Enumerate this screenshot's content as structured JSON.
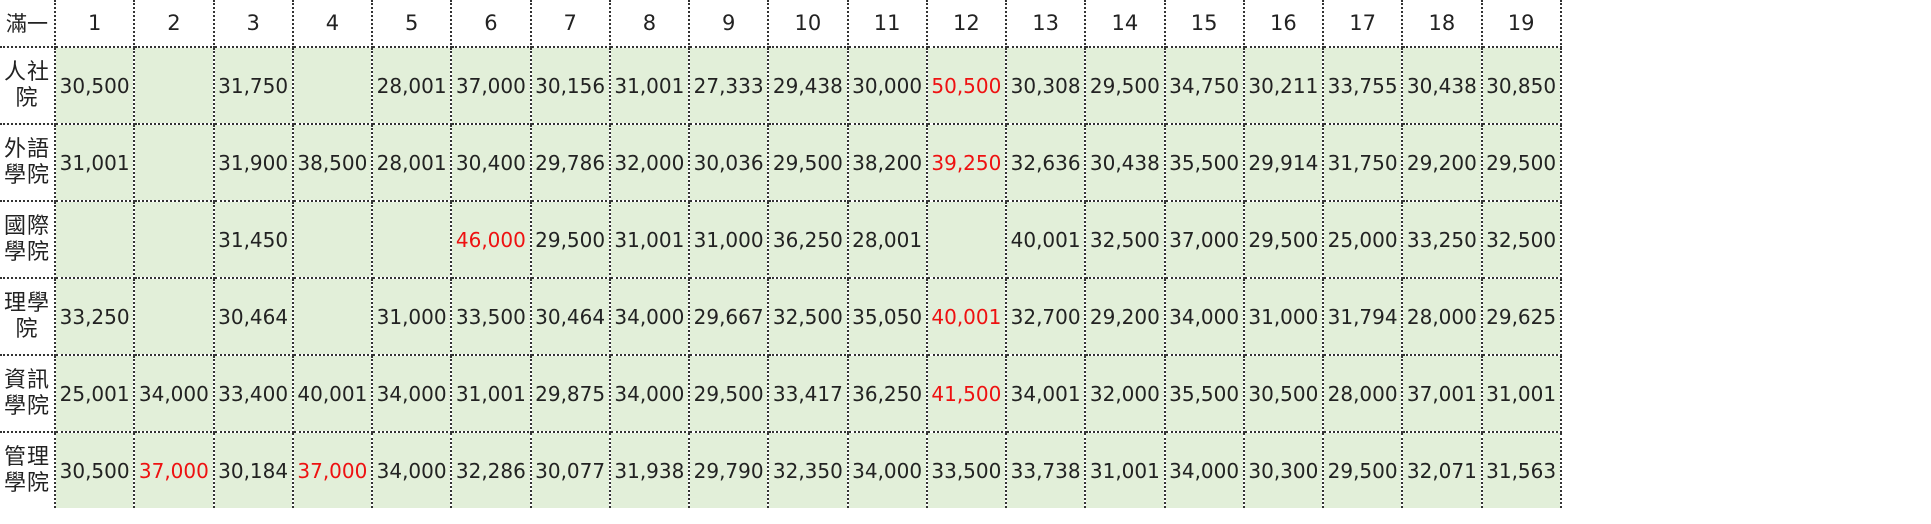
{
  "table": {
    "corner_label": "滿一",
    "columns": [
      "1",
      "2",
      "3",
      "4",
      "5",
      "6",
      "7",
      "8",
      "9",
      "10",
      "11",
      "12",
      "13",
      "14",
      "15",
      "16",
      "17",
      "18",
      "19"
    ],
    "highlight_color": "#ee1111",
    "cell_background": "#e2efd9",
    "rows": [
      {
        "label_lines": [
          "人社",
          "院"
        ],
        "cells": [
          {
            "v": "30,500"
          },
          {
            "v": ""
          },
          {
            "v": "31,750"
          },
          {
            "v": ""
          },
          {
            "v": "28,001"
          },
          {
            "v": "37,000"
          },
          {
            "v": "30,156"
          },
          {
            "v": "31,001"
          },
          {
            "v": "27,333"
          },
          {
            "v": "29,438"
          },
          {
            "v": "30,000"
          },
          {
            "v": "50,500",
            "hi": true
          },
          {
            "v": "30,308"
          },
          {
            "v": "29,500"
          },
          {
            "v": "34,750"
          },
          {
            "v": "30,211"
          },
          {
            "v": "33,755"
          },
          {
            "v": "30,438"
          },
          {
            "v": "30,850"
          }
        ]
      },
      {
        "label_lines": [
          "外語",
          "學院"
        ],
        "cells": [
          {
            "v": "31,001"
          },
          {
            "v": ""
          },
          {
            "v": "31,900"
          },
          {
            "v": "38,500"
          },
          {
            "v": "28,001"
          },
          {
            "v": "30,400"
          },
          {
            "v": "29,786"
          },
          {
            "v": "32,000"
          },
          {
            "v": "30,036"
          },
          {
            "v": "29,500"
          },
          {
            "v": "38,200"
          },
          {
            "v": "39,250",
            "hi": true
          },
          {
            "v": "32,636"
          },
          {
            "v": "30,438"
          },
          {
            "v": "35,500"
          },
          {
            "v": "29,914"
          },
          {
            "v": "31,750"
          },
          {
            "v": "29,200"
          },
          {
            "v": "29,500"
          }
        ]
      },
      {
        "label_lines": [
          "國際",
          "學院"
        ],
        "cells": [
          {
            "v": ""
          },
          {
            "v": ""
          },
          {
            "v": "31,450"
          },
          {
            "v": ""
          },
          {
            "v": ""
          },
          {
            "v": "46,000",
            "hi": true
          },
          {
            "v": "29,500"
          },
          {
            "v": "31,001"
          },
          {
            "v": "31,000"
          },
          {
            "v": "36,250"
          },
          {
            "v": "28,001"
          },
          {
            "v": ""
          },
          {
            "v": "40,001"
          },
          {
            "v": "32,500"
          },
          {
            "v": "37,000"
          },
          {
            "v": "29,500"
          },
          {
            "v": "25,000"
          },
          {
            "v": "33,250"
          },
          {
            "v": "32,500"
          }
        ]
      },
      {
        "label_lines": [
          "理學",
          "院"
        ],
        "cells": [
          {
            "v": "33,250"
          },
          {
            "v": ""
          },
          {
            "v": "30,464"
          },
          {
            "v": ""
          },
          {
            "v": "31,000"
          },
          {
            "v": "33,500"
          },
          {
            "v": "30,464"
          },
          {
            "v": "34,000"
          },
          {
            "v": "29,667"
          },
          {
            "v": "32,500"
          },
          {
            "v": "35,050"
          },
          {
            "v": "40,001",
            "hi": true
          },
          {
            "v": "32,700"
          },
          {
            "v": "29,200"
          },
          {
            "v": "34,000"
          },
          {
            "v": "31,000"
          },
          {
            "v": "31,794"
          },
          {
            "v": "28,000"
          },
          {
            "v": "29,625"
          }
        ]
      },
      {
        "label_lines": [
          "資訊",
          "學院"
        ],
        "cells": [
          {
            "v": "25,001"
          },
          {
            "v": "34,000"
          },
          {
            "v": "33,400"
          },
          {
            "v": "40,001"
          },
          {
            "v": "34,000"
          },
          {
            "v": "31,001"
          },
          {
            "v": "29,875"
          },
          {
            "v": "34,000"
          },
          {
            "v": "29,500"
          },
          {
            "v": "33,417"
          },
          {
            "v": "36,250"
          },
          {
            "v": "41,500",
            "hi": true
          },
          {
            "v": "34,001"
          },
          {
            "v": "32,000"
          },
          {
            "v": "35,500"
          },
          {
            "v": "30,500"
          },
          {
            "v": "28,000"
          },
          {
            "v": "37,001"
          },
          {
            "v": "31,001"
          }
        ]
      },
      {
        "label_lines": [
          "管理",
          "學院"
        ],
        "cells": [
          {
            "v": "30,500"
          },
          {
            "v": "37,000",
            "hi": true
          },
          {
            "v": "30,184"
          },
          {
            "v": "37,000",
            "hi": true
          },
          {
            "v": "34,000"
          },
          {
            "v": "32,286"
          },
          {
            "v": "30,077"
          },
          {
            "v": "31,938"
          },
          {
            "v": "29,790"
          },
          {
            "v": "32,350"
          },
          {
            "v": "34,000"
          },
          {
            "v": "33,500"
          },
          {
            "v": "33,738"
          },
          {
            "v": "31,001"
          },
          {
            "v": "34,000"
          },
          {
            "v": "30,300"
          },
          {
            "v": "29,500"
          },
          {
            "v": "32,071"
          },
          {
            "v": "31,563"
          }
        ]
      }
    ]
  }
}
